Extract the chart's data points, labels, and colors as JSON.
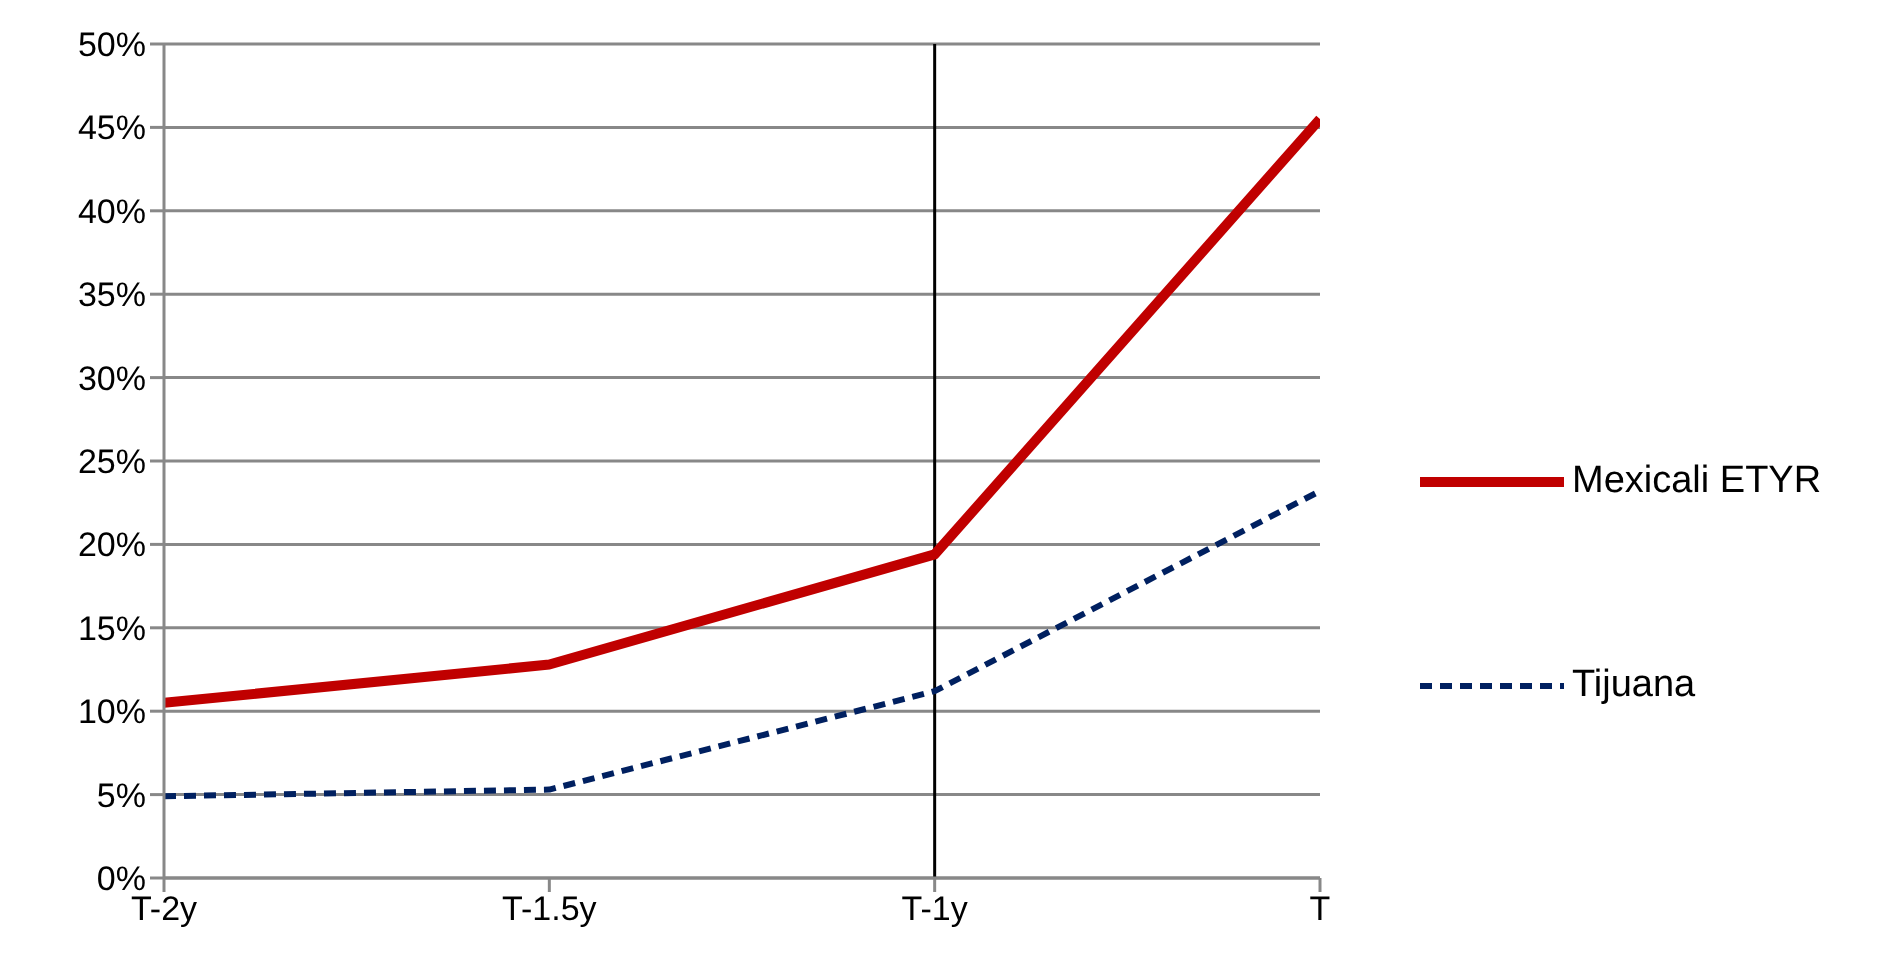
{
  "chart_data": {
    "type": "line",
    "categories": [
      "T-2y",
      "T-1.5y",
      "T-1y",
      "T"
    ],
    "series": [
      {
        "name": "Mexicali ETYR",
        "color": "#c00000",
        "values": [
          10.5,
          12.8,
          19.4,
          45.5
        ],
        "line_style": "solid"
      },
      {
        "name": "Tijuana",
        "color": "#002060",
        "values": [
          4.9,
          5.3,
          11.2,
          23.2
        ],
        "line_style": "dashed"
      }
    ],
    "ylim": [
      0,
      50
    ],
    "yticks": [
      {
        "value": 0,
        "label": "0%"
      },
      {
        "value": 5,
        "label": "5%"
      },
      {
        "value": 10,
        "label": "10%"
      },
      {
        "value": 15,
        "label": "15%"
      },
      {
        "value": 20,
        "label": "20%"
      },
      {
        "value": 25,
        "label": "25%"
      },
      {
        "value": 30,
        "label": "30%"
      },
      {
        "value": 35,
        "label": "35%"
      },
      {
        "value": 40,
        "label": "40%"
      },
      {
        "value": 45,
        "label": "45%"
      },
      {
        "value": 50,
        "label": "50%"
      }
    ],
    "ref_lines": [
      {
        "axis": "x",
        "value": "T-1y",
        "color": "#000000"
      }
    ],
    "grid": "y",
    "legend": "right",
    "marker": "none"
  }
}
